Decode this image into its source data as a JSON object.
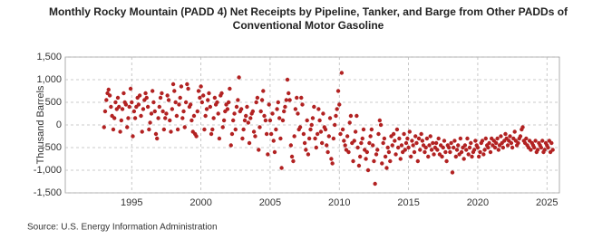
{
  "chart_data": {
    "type": "scatter",
    "title": "Monthly Rocky Mountain (PADD 4) Net Receipts by Pipeline, Tanker, and Barge from Other PADDs of Conventional Motor Gasoline",
    "y_label": "Thousand Barrels",
    "source": "Source: U.S. Energy Information Administration",
    "color": "#b22222",
    "grid": true,
    "xlim": [
      1990.2,
      2025.9
    ],
    "xticks": [
      1995,
      2000,
      2005,
      2010,
      2015,
      2020,
      2025
    ],
    "ylim": [
      -1500,
      1500
    ],
    "yticks": [
      {
        "value": -1500,
        "label": "-1,500"
      },
      {
        "value": -1000,
        "label": "-1,000"
      },
      -500,
      0,
      500,
      {
        "value": 1000,
        "label": "1,000"
      },
      {
        "value": 1500,
        "label": "1,500"
      }
    ],
    "x": [
      1993,
      1993.08,
      1993.17,
      1993.25,
      1993.33,
      1993.42,
      1993.5,
      1993.58,
      1993.67,
      1993.75,
      1993.83,
      1993.92,
      1994,
      1994.08,
      1994.17,
      1994.25,
      1994.33,
      1994.42,
      1994.5,
      1994.58,
      1994.67,
      1994.75,
      1994.83,
      1994.92,
      1995,
      1995.08,
      1995.17,
      1995.25,
      1995.33,
      1995.42,
      1995.5,
      1995.58,
      1995.67,
      1995.75,
      1995.83,
      1995.92,
      1996,
      1996.08,
      1996.17,
      1996.25,
      1996.33,
      1996.42,
      1996.5,
      1996.58,
      1996.67,
      1996.75,
      1996.83,
      1996.92,
      1997,
      1997.08,
      1997.17,
      1997.25,
      1997.33,
      1997.42,
      1997.5,
      1997.58,
      1997.67,
      1997.75,
      1997.83,
      1997.92,
      1998,
      1998.08,
      1998.17,
      1998.25,
      1998.33,
      1998.42,
      1998.5,
      1998.58,
      1998.67,
      1998.75,
      1998.83,
      1998.92,
      1999,
      1999.08,
      1999.17,
      1999.25,
      1999.33,
      1999.42,
      1999.5,
      1999.58,
      1999.67,
      1999.75,
      1999.83,
      1999.92,
      2000,
      2000.08,
      2000.17,
      2000.25,
      2000.33,
      2000.42,
      2000.5,
      2000.58,
      2000.67,
      2000.75,
      2000.83,
      2000.92,
      2001,
      2001.08,
      2001.17,
      2001.25,
      2001.33,
      2001.42,
      2001.5,
      2001.58,
      2001.67,
      2001.75,
      2001.83,
      2001.92,
      2002,
      2002.08,
      2002.17,
      2002.25,
      2002.33,
      2002.42,
      2002.5,
      2002.58,
      2002.67,
      2002.75,
      2002.83,
      2002.92,
      2003,
      2003.08,
      2003.17,
      2003.25,
      2003.33,
      2003.42,
      2003.5,
      2003.58,
      2003.67,
      2003.75,
      2003.83,
      2003.92,
      2004,
      2004.08,
      2004.17,
      2004.25,
      2004.33,
      2004.42,
      2004.5,
      2004.58,
      2004.67,
      2004.75,
      2004.83,
      2004.92,
      2005,
      2005.08,
      2005.17,
      2005.25,
      2005.33,
      2005.42,
      2005.5,
      2005.58,
      2005.67,
      2005.75,
      2005.83,
      2005.92,
      2006,
      2006.08,
      2006.17,
      2006.25,
      2006.33,
      2006.42,
      2006.5,
      2006.58,
      2006.67,
      2006.75,
      2006.83,
      2006.92,
      2007,
      2007.08,
      2007.17,
      2007.25,
      2007.33,
      2007.42,
      2007.5,
      2007.58,
      2007.67,
      2007.75,
      2007.83,
      2007.92,
      2008,
      2008.08,
      2008.17,
      2008.25,
      2008.33,
      2008.42,
      2008.5,
      2008.58,
      2008.67,
      2008.75,
      2008.83,
      2008.92,
      2009,
      2009.08,
      2009.17,
      2009.25,
      2009.33,
      2009.42,
      2009.5,
      2009.58,
      2009.67,
      2009.75,
      2009.83,
      2009.92,
      2010,
      2010.08,
      2010.17,
      2010.25,
      2010.33,
      2010.42,
      2010.5,
      2010.58,
      2010.67,
      2010.75,
      2010.83,
      2010.92,
      2011,
      2011.08,
      2011.17,
      2011.25,
      2011.33,
      2011.42,
      2011.5,
      2011.58,
      2011.67,
      2011.75,
      2011.83,
      2011.92,
      2012,
      2012.08,
      2012.17,
      2012.25,
      2012.33,
      2012.42,
      2012.5,
      2012.58,
      2012.67,
      2012.75,
      2012.83,
      2012.92,
      2013,
      2013.08,
      2013.17,
      2013.25,
      2013.33,
      2013.42,
      2013.5,
      2013.58,
      2013.67,
      2013.75,
      2013.83,
      2013.92,
      2014,
      2014.08,
      2014.17,
      2014.25,
      2014.33,
      2014.42,
      2014.5,
      2014.58,
      2014.67,
      2014.75,
      2014.83,
      2014.92,
      2015,
      2015.08,
      2015.17,
      2015.25,
      2015.33,
      2015.42,
      2015.5,
      2015.58,
      2015.67,
      2015.75,
      2015.83,
      2015.92,
      2016,
      2016.08,
      2016.17,
      2016.25,
      2016.33,
      2016.42,
      2016.5,
      2016.58,
      2016.67,
      2016.75,
      2016.83,
      2016.92,
      2017,
      2017.08,
      2017.17,
      2017.25,
      2017.33,
      2017.42,
      2017.5,
      2017.58,
      2017.67,
      2017.75,
      2017.83,
      2017.92,
      2018,
      2018.08,
      2018.17,
      2018.25,
      2018.33,
      2018.42,
      2018.5,
      2018.58,
      2018.67,
      2018.75,
      2018.83,
      2018.92,
      2019,
      2019.08,
      2019.17,
      2019.25,
      2019.33,
      2019.42,
      2019.5,
      2019.58,
      2019.67,
      2019.75,
      2019.83,
      2019.92,
      2020,
      2020.08,
      2020.17,
      2020.25,
      2020.33,
      2020.42,
      2020.5,
      2020.58,
      2020.67,
      2020.75,
      2020.83,
      2020.92,
      2021,
      2021.08,
      2021.17,
      2021.25,
      2021.33,
      2021.42,
      2021.5,
      2021.58,
      2021.67,
      2021.75,
      2021.83,
      2021.92,
      2022,
      2022.08,
      2022.17,
      2022.25,
      2022.33,
      2022.42,
      2022.5,
      2022.58,
      2022.67,
      2022.75,
      2022.83,
      2022.92,
      2023,
      2023.08,
      2023.17,
      2023.25,
      2023.33,
      2023.42,
      2023.5,
      2023.58,
      2023.67,
      2023.75,
      2023.83,
      2023.92,
      2024,
      2024.08,
      2024.17,
      2024.25,
      2024.33,
      2024.42,
      2024.5,
      2024.58,
      2024.67,
      2024.75,
      2024.83,
      2024.92,
      2025,
      2025.08,
      2025.17,
      2025.25,
      2025.33,
      2025.42
    ],
    "values": [
      -50,
      300,
      550,
      700,
      780,
      650,
      400,
      200,
      -100,
      150,
      500,
      350,
      600,
      400,
      -150,
      100,
      350,
      700,
      500,
      450,
      -50,
      150,
      400,
      800,
      500,
      -250,
      300,
      150,
      400,
      600,
      450,
      650,
      200,
      -150,
      350,
      550,
      700,
      600,
      400,
      -100,
      50,
      250,
      750,
      500,
      300,
      -200,
      -300,
      150,
      400,
      600,
      700,
      300,
      -100,
      150,
      250,
      650,
      550,
      100,
      -150,
      350,
      900,
      750,
      500,
      200,
      -100,
      450,
      600,
      850,
      150,
      300,
      -50,
      500,
      900,
      800,
      400,
      450,
      100,
      -150,
      200,
      -200,
      -250,
      300,
      750,
      600,
      850,
      500,
      650,
      -100,
      200,
      350,
      550,
      700,
      400,
      -200,
      -100,
      150,
      600,
      450,
      500,
      250,
      -300,
      650,
      700,
      -50,
      100,
      300,
      450,
      350,
      500,
      800,
      -450,
      -200,
      100,
      250,
      -100,
      400,
      550,
      1050,
      300,
      350,
      -300,
      -100,
      100,
      200,
      400,
      50,
      -400,
      150,
      250,
      300,
      -150,
      -250,
      500,
      600,
      -550,
      -50,
      300,
      550,
      750,
      200,
      100,
      -200,
      -650,
      450,
      100,
      -200,
      250,
      -350,
      -600,
      -100,
      350,
      500,
      150,
      -300,
      -950,
      100,
      300,
      400,
      550,
      1000,
      700,
      550,
      -450,
      -700,
      -800,
      -250,
      350,
      600,
      250,
      -100,
      -50,
      600,
      450,
      -200,
      -400,
      -550,
      100,
      -650,
      -300,
      -100,
      0,
      150,
      400,
      -300,
      -500,
      -200,
      350,
      100,
      -150,
      -400,
      250,
      -50,
      -100,
      -450,
      -600,
      -250,
      150,
      -750,
      -850,
      -300,
      0,
      200,
      350,
      750,
      450,
      -200,
      1150,
      -100,
      -350,
      -450,
      -550,
      -250,
      -600,
      50,
      200,
      -400,
      -800,
      -350,
      -150,
      200,
      -500,
      -900,
      -700,
      -400,
      -300,
      -100,
      -550,
      -750,
      -600,
      -1000,
      -400,
      -250,
      -100,
      -450,
      -800,
      -1300,
      -650,
      -550,
      -200,
      100,
      0,
      -850,
      -400,
      -300,
      -700,
      -950,
      -500,
      -600,
      -800,
      -250,
      -450,
      -200,
      -350,
      -650,
      -100,
      -500,
      -300,
      -750,
      -450,
      -600,
      -200,
      -550,
      -400,
      -300,
      -500,
      -150,
      -700,
      -350,
      -450,
      -600,
      -250,
      -400,
      -800,
      -300,
      -550,
      -200,
      -350,
      -450,
      -600,
      -500,
      -300,
      -700,
      -450,
      -250,
      -550,
      -400,
      -650,
      -500,
      -400,
      -550,
      -300,
      -650,
      -450,
      -700,
      -500,
      -350,
      -600,
      -800,
      -450,
      -500,
      -600,
      -400,
      -1050,
      -500,
      -350,
      -700,
      -550,
      -450,
      -650,
      -300,
      -600,
      -500,
      -750,
      -450,
      -550,
      -300,
      -650,
      -500,
      -400,
      -700,
      -600,
      -550,
      -350,
      -450,
      -500,
      -700,
      -600,
      -400,
      -350,
      -650,
      -550,
      -300,
      -450,
      -500,
      -400,
      -600,
      -300,
      -450,
      -350,
      -500,
      -400,
      -300,
      -550,
      -450,
      -250,
      -400,
      -500,
      -350,
      -200,
      -300,
      -450,
      -350,
      -250,
      -400,
      -500,
      -300,
      -150,
      -350,
      -450,
      -400,
      -300,
      -250,
      -100,
      -50,
      -350,
      -400,
      -300,
      -450,
      -500,
      -350,
      -550,
      -400,
      -450,
      -500,
      -350,
      -600,
      -550,
      -400,
      -450,
      -500,
      -350,
      -600,
      -550,
      -400,
      -450,
      -500,
      -350,
      -600,
      -400,
      -550
    ]
  }
}
